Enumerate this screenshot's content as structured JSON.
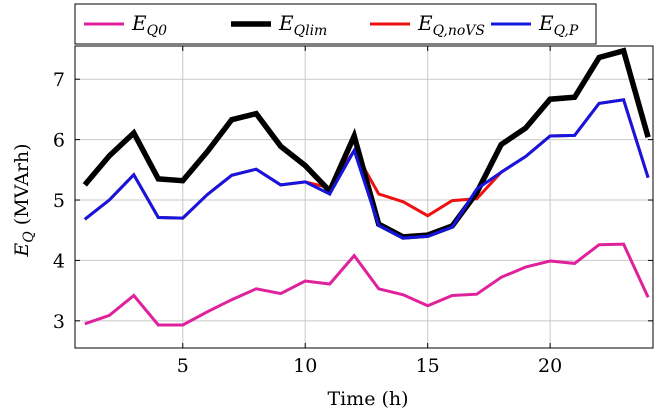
{
  "chart_data": {
    "type": "line",
    "xlabel": "Time (h)",
    "ylabel": "E_Q (MVArh)",
    "ylabel_main": "E",
    "ylabel_sub": "Q",
    "ylabel_unit": "(MVArh)",
    "xlim": [
      0.6,
      24.2
    ],
    "ylim": [
      2.55,
      7.55
    ],
    "xticks": [
      5,
      10,
      15,
      20
    ],
    "yticks": [
      3,
      4,
      5,
      6,
      7
    ],
    "grid": true,
    "legend_position": "top",
    "x": [
      1,
      2,
      3,
      4,
      5,
      6,
      7,
      8,
      9,
      10,
      11,
      12,
      13,
      14,
      15,
      16,
      17,
      18,
      19,
      20,
      21,
      22,
      23,
      24
    ],
    "series": [
      {
        "name": "E_Q0",
        "label_main": "E",
        "label_sub": "Q0",
        "color": "#e0219c",
        "values": [
          2.95,
          3.09,
          3.42,
          2.93,
          2.93,
          3.15,
          3.35,
          3.53,
          3.45,
          3.66,
          3.61,
          4.08,
          3.53,
          3.43,
          3.25,
          3.42,
          3.44,
          3.72,
          3.89,
          3.99,
          3.95,
          4.26,
          4.27,
          3.39
        ]
      },
      {
        "name": "E_Qlim",
        "label_main": "E",
        "label_sub": "Qlim",
        "color": "#000000",
        "values": [
          5.25,
          5.73,
          6.11,
          5.35,
          5.32,
          5.8,
          6.33,
          6.43,
          5.89,
          5.57,
          5.15,
          6.06,
          4.6,
          4.39,
          4.42,
          4.57,
          5.12,
          5.92,
          6.19,
          6.67,
          6.7,
          7.36,
          7.47,
          6.04
        ]
      },
      {
        "name": "E_Q,noVS",
        "label_main": "E",
        "label_sub": "Q,noVS",
        "color": "#ee1111",
        "values": [
          4.68,
          5.0,
          5.42,
          4.71,
          4.7,
          5.09,
          5.41,
          5.51,
          5.25,
          5.3,
          5.2,
          5.82,
          5.1,
          4.97,
          4.74,
          4.99,
          5.02,
          5.46,
          5.72,
          6.06,
          6.07,
          6.6,
          6.66,
          5.37
        ]
      },
      {
        "name": "E_Q,P",
        "label_main": "E",
        "label_sub": "Q,P",
        "color": "#1515e0",
        "values": [
          4.68,
          5.0,
          5.42,
          4.71,
          4.7,
          5.09,
          5.41,
          5.51,
          5.25,
          5.3,
          5.1,
          5.82,
          4.58,
          4.37,
          4.4,
          4.55,
          5.18,
          5.46,
          5.72,
          6.06,
          6.07,
          6.6,
          6.66,
          5.37
        ]
      }
    ]
  }
}
